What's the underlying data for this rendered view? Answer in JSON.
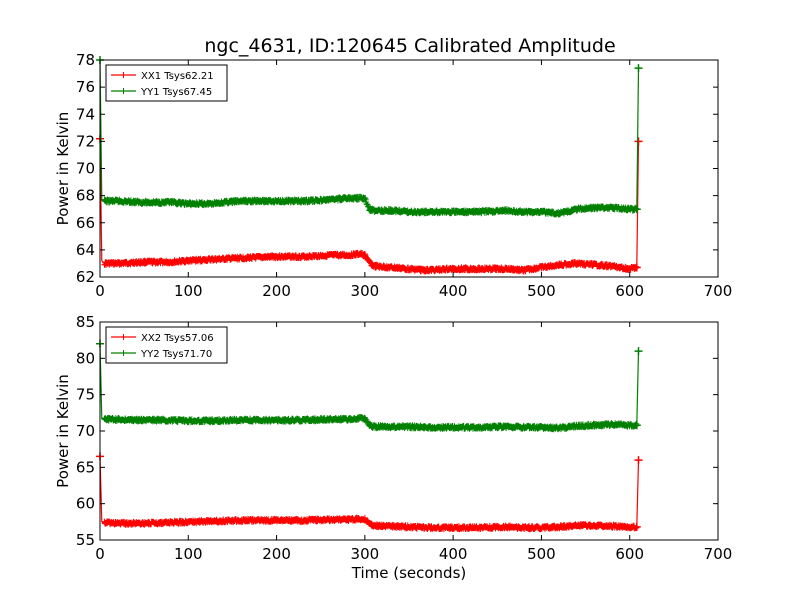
{
  "title": "ngc_4631, ID:120645 Calibrated Amplitude",
  "chart_data": [
    {
      "type": "line",
      "title": "ngc_4631, ID:120645 Calibrated Amplitude",
      "xlabel": "",
      "ylabel": "Power in Kelvin",
      "xlim": [
        0,
        700
      ],
      "ylim": [
        62,
        78
      ],
      "xticks": [
        "0",
        "100",
        "200",
        "300",
        "400",
        "500",
        "600",
        "700"
      ],
      "yticks": [
        "62",
        "64",
        "66",
        "68",
        "70",
        "72",
        "74",
        "76",
        "78"
      ],
      "legend_position": "top-left",
      "series": [
        {
          "name": "XX1 Tsys62.21",
          "color": "#ff0000",
          "x": [
            0,
            2,
            3,
            5,
            20,
            50,
            80,
            100,
            130,
            160,
            200,
            230,
            260,
            280,
            295,
            300,
            305,
            310,
            330,
            350,
            370,
            400,
            430,
            460,
            480,
            500,
            520,
            540,
            560,
            580,
            600,
            608,
            610
          ],
          "y": [
            72.2,
            63.2,
            63.1,
            63.0,
            63.0,
            63.1,
            63.1,
            63.2,
            63.3,
            63.4,
            63.5,
            63.5,
            63.6,
            63.6,
            63.7,
            63.6,
            63.1,
            62.8,
            62.7,
            62.6,
            62.5,
            62.6,
            62.6,
            62.6,
            62.5,
            62.7,
            62.9,
            63.0,
            62.9,
            62.8,
            62.6,
            62.7,
            72.0
          ]
        },
        {
          "name": "YY1 Tsys67.45",
          "color": "#008000",
          "x": [
            0,
            2,
            3,
            5,
            20,
            50,
            80,
            100,
            120,
            160,
            200,
            230,
            260,
            280,
            300,
            305,
            310,
            330,
            350,
            370,
            400,
            430,
            460,
            480,
            500,
            520,
            540,
            560,
            580,
            600,
            608,
            610
          ],
          "y": [
            78.0,
            67.7,
            67.6,
            67.6,
            67.6,
            67.5,
            67.5,
            67.4,
            67.4,
            67.6,
            67.6,
            67.6,
            67.7,
            67.8,
            67.8,
            67.0,
            66.9,
            66.9,
            66.8,
            66.8,
            66.8,
            66.8,
            66.9,
            66.8,
            66.8,
            66.7,
            67.0,
            67.1,
            67.1,
            67.0,
            67.0,
            77.4
          ]
        }
      ]
    },
    {
      "type": "line",
      "title": "",
      "xlabel": "Time (seconds)",
      "ylabel": "Power in Kelvin",
      "xlim": [
        0,
        700
      ],
      "ylim": [
        55,
        85
      ],
      "xticks": [
        "0",
        "100",
        "200",
        "300",
        "400",
        "500",
        "600",
        "700"
      ],
      "yticks": [
        "55",
        "60",
        "65",
        "70",
        "75",
        "80",
        "85"
      ],
      "legend_position": "top-left",
      "series": [
        {
          "name": "XX2 Tsys57.06",
          "color": "#ff0000",
          "x": [
            0,
            2,
            3,
            5,
            20,
            50,
            80,
            100,
            130,
            160,
            200,
            230,
            260,
            280,
            300,
            305,
            310,
            330,
            350,
            370,
            400,
            430,
            460,
            480,
            500,
            520,
            540,
            560,
            580,
            600,
            608,
            610
          ],
          "y": [
            66.5,
            57.5,
            57.4,
            57.4,
            57.3,
            57.3,
            57.4,
            57.5,
            57.6,
            57.7,
            57.7,
            57.7,
            57.8,
            57.8,
            57.9,
            57.3,
            57.0,
            56.9,
            56.8,
            56.7,
            56.7,
            56.7,
            56.8,
            56.7,
            56.7,
            56.8,
            57.0,
            57.0,
            56.9,
            56.8,
            56.8,
            66.0
          ]
        },
        {
          "name": "YY2 Tsys71.70",
          "color": "#008000",
          "x": [
            0,
            2,
            3,
            5,
            20,
            50,
            80,
            100,
            130,
            160,
            200,
            230,
            260,
            280,
            300,
            305,
            310,
            330,
            350,
            370,
            400,
            430,
            460,
            480,
            500,
            520,
            540,
            560,
            580,
            600,
            608,
            610
          ],
          "y": [
            82.0,
            71.7,
            71.6,
            71.6,
            71.6,
            71.5,
            71.5,
            71.4,
            71.4,
            71.5,
            71.5,
            71.5,
            71.6,
            71.6,
            71.8,
            70.8,
            70.6,
            70.6,
            70.6,
            70.5,
            70.5,
            70.5,
            70.6,
            70.5,
            70.5,
            70.4,
            70.7,
            70.8,
            70.9,
            70.8,
            70.8,
            81.0
          ]
        }
      ]
    }
  ]
}
